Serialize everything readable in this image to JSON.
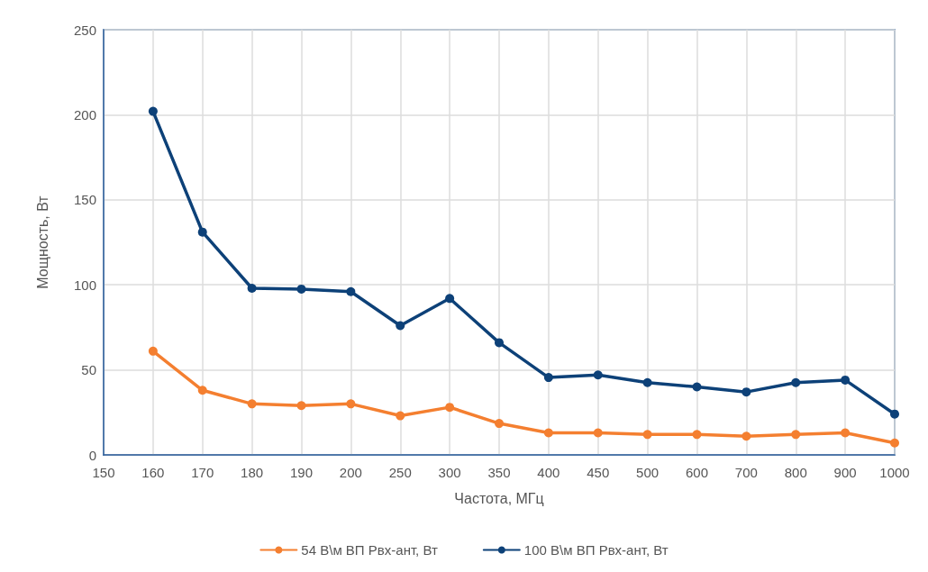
{
  "chart_data": {
    "type": "line",
    "xlabel": "Частота, МГц",
    "ylabel": "Мощность, Вт",
    "categories": [
      "150",
      "160",
      "170",
      "180",
      "190",
      "200",
      "250",
      "300",
      "350",
      "400",
      "450",
      "500",
      "600",
      "700",
      "800",
      "900",
      "1000"
    ],
    "series": [
      {
        "name": "54 В\\м ВП Рвх-ант, Вт",
        "color": "#f47f30",
        "values": [
          null,
          61,
          38,
          30,
          29,
          30,
          23,
          28,
          18.5,
          13,
          13,
          12,
          12,
          11,
          12,
          13,
          7
        ]
      },
      {
        "name": "100 В\\м ВП Рвх-ант, Вт",
        "color": "#0d4178",
        "values": [
          null,
          202,
          131,
          98,
          97.5,
          96,
          76,
          92,
          66,
          45.5,
          47,
          42.5,
          40,
          37,
          42.5,
          44,
          24
        ]
      }
    ],
    "ylim": [
      0,
      250
    ],
    "yticks": [
      0,
      50,
      100,
      150,
      200,
      250
    ],
    "grid": true,
    "legend": "bottom",
    "marker": "circle",
    "line_style": "solid"
  }
}
